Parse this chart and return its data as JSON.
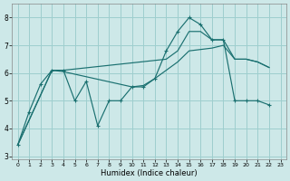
{
  "xlabel": "Humidex (Indice chaleur)",
  "bg_color": "#cde8e8",
  "grid_color": "#9ecece",
  "line_color": "#1a7070",
  "xlim": [
    -0.5,
    23.5
  ],
  "ylim": [
    2.9,
    8.5
  ],
  "yticks": [
    3,
    4,
    5,
    6,
    7,
    8
  ],
  "xticks": [
    0,
    1,
    2,
    3,
    4,
    5,
    6,
    7,
    8,
    9,
    10,
    11,
    12,
    13,
    14,
    15,
    16,
    17,
    18,
    19,
    20,
    21,
    22,
    23
  ],
  "series_jagged": {
    "x": [
      0,
      1,
      2,
      3,
      4,
      5,
      6,
      7,
      8,
      9,
      10,
      11,
      12,
      13,
      14,
      15,
      16,
      17,
      18,
      19,
      20,
      21,
      22
    ],
    "y": [
      3.4,
      4.6,
      5.6,
      6.1,
      6.1,
      5.0,
      5.7,
      4.1,
      5.0,
      5.0,
      5.5,
      5.5,
      5.8,
      6.8,
      7.5,
      8.0,
      7.75,
      7.2,
      7.2,
      5.0,
      5.0,
      5.0,
      4.85
    ]
  },
  "series_upper": {
    "x": [
      0,
      3,
      4,
      13,
      14,
      15,
      16,
      17,
      18,
      19,
      20,
      21,
      22
    ],
    "y": [
      3.4,
      6.1,
      6.1,
      6.5,
      6.8,
      7.5,
      7.5,
      7.2,
      7.2,
      6.5,
      6.5,
      6.4,
      6.2
    ]
  },
  "series_lower": {
    "x": [
      0,
      3,
      4,
      10,
      11,
      12,
      13,
      14,
      15,
      16,
      17,
      18,
      19,
      20,
      21,
      22
    ],
    "y": [
      3.4,
      6.1,
      6.05,
      5.5,
      5.55,
      5.8,
      6.1,
      6.4,
      6.8,
      6.85,
      6.9,
      7.0,
      6.5,
      6.5,
      6.4,
      6.2
    ]
  }
}
